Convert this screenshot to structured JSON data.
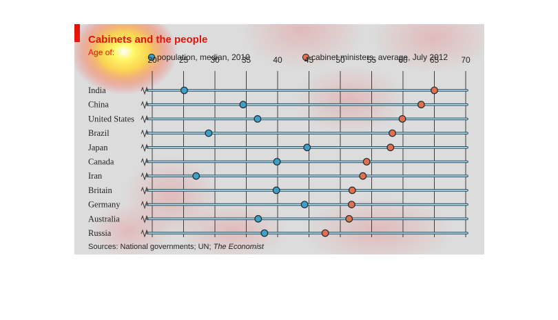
{
  "chart_data": {
    "type": "dot",
    "title": "Cabinets and the people",
    "subtitle": "Age of:",
    "legend": [
      {
        "label": "population, median, 2010",
        "color": "#3ea0c8"
      },
      {
        "label": "cabinet ministers, average, July 2012",
        "color": "#e0704e"
      }
    ],
    "x_ticks": [
      20,
      25,
      30,
      35,
      40,
      45,
      50,
      55,
      60,
      65,
      70
    ],
    "xlim": [
      20,
      70
    ],
    "axis_break": true,
    "categories": [
      "India",
      "China",
      "United States",
      "Brazil",
      "Japan",
      "Canada",
      "Iran",
      "Britain",
      "Germany",
      "Australia",
      "Russia"
    ],
    "series": [
      {
        "name": "population, median, 2010",
        "values": [
          25.1,
          34.5,
          36.8,
          29.0,
          44.7,
          39.9,
          27.0,
          39.8,
          44.3,
          36.9,
          37.9
        ]
      },
      {
        "name": "cabinet ministers, average, July 2012",
        "values": [
          65.0,
          62.9,
          59.9,
          58.3,
          58.0,
          54.2,
          53.6,
          51.9,
          51.8,
          51.4,
          47.6
        ]
      }
    ],
    "source_prefix": "Sources: National governments; UN; ",
    "source_italic": "The Economist",
    "grid": true
  }
}
